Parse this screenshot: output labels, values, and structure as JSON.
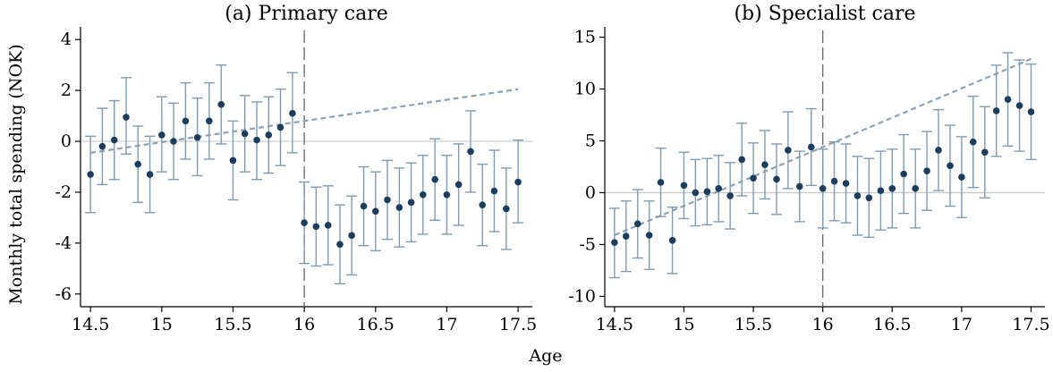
{
  "figure": {
    "ylabel": "Monthly total spending (NOK)",
    "xlabel": "Age"
  },
  "colors": {
    "point": "#1c3e5e",
    "errorbar": "#7f9bb2",
    "fitline": "#8aa2b8",
    "cutoff": "#666666",
    "zeroline": "#c8c8c8"
  },
  "chart_data": [
    {
      "type": "scatter",
      "title": "(a) Primary care",
      "xlim": [
        14.43,
        17.6
      ],
      "ylim": [
        -6.5,
        4.5
      ],
      "xticks": [
        14.5,
        15,
        15.5,
        16,
        16.5,
        17,
        17.5
      ],
      "xtick_labels": [
        "14.5",
        "15",
        "15.5",
        "16",
        "16.5",
        "17",
        "17.5"
      ],
      "yticks": [
        -6,
        -4,
        -2,
        0,
        2,
        4
      ],
      "ytick_labels": [
        "-6",
        "-4",
        "-2",
        "0",
        "2",
        "4"
      ],
      "cutoff": 16,
      "zero_line": true,
      "points": [
        {
          "x": 14.5,
          "y": -1.3,
          "lo": -2.8,
          "hi": 0.2
        },
        {
          "x": 14.583,
          "y": -0.2,
          "lo": -1.7,
          "hi": 1.3
        },
        {
          "x": 14.667,
          "y": 0.05,
          "lo": -1.5,
          "hi": 1.6
        },
        {
          "x": 14.75,
          "y": 0.95,
          "lo": -0.5,
          "hi": 2.5
        },
        {
          "x": 14.833,
          "y": -0.9,
          "lo": -2.4,
          "hi": 0.6
        },
        {
          "x": 14.917,
          "y": -1.3,
          "lo": -2.8,
          "hi": 0.2
        },
        {
          "x": 15.0,
          "y": 0.25,
          "lo": -1.2,
          "hi": 1.75
        },
        {
          "x": 15.083,
          "y": 0.0,
          "lo": -1.5,
          "hi": 1.5
        },
        {
          "x": 15.167,
          "y": 0.8,
          "lo": -0.7,
          "hi": 2.3
        },
        {
          "x": 15.25,
          "y": 0.15,
          "lo": -1.35,
          "hi": 1.7
        },
        {
          "x": 15.333,
          "y": 0.8,
          "lo": -0.7,
          "hi": 2.3
        },
        {
          "x": 15.417,
          "y": 1.45,
          "lo": -0.1,
          "hi": 3.0
        },
        {
          "x": 15.5,
          "y": -0.75,
          "lo": -2.3,
          "hi": 0.8
        },
        {
          "x": 15.583,
          "y": 0.3,
          "lo": -1.2,
          "hi": 1.8
        },
        {
          "x": 15.667,
          "y": 0.05,
          "lo": -1.5,
          "hi": 1.55
        },
        {
          "x": 15.75,
          "y": 0.25,
          "lo": -1.25,
          "hi": 1.75
        },
        {
          "x": 15.833,
          "y": 0.55,
          "lo": -0.95,
          "hi": 2.05
        },
        {
          "x": 15.917,
          "y": 1.1,
          "lo": -0.45,
          "hi": 2.7
        },
        {
          "x": 16.0,
          "y": -3.2,
          "lo": -4.8,
          "hi": -1.6
        },
        {
          "x": 16.083,
          "y": -3.35,
          "lo": -4.9,
          "hi": -1.8
        },
        {
          "x": 16.167,
          "y": -3.3,
          "lo": -4.85,
          "hi": -1.75
        },
        {
          "x": 16.25,
          "y": -4.05,
          "lo": -5.6,
          "hi": -2.5
        },
        {
          "x": 16.333,
          "y": -3.7,
          "lo": -5.25,
          "hi": -2.15
        },
        {
          "x": 16.417,
          "y": -2.55,
          "lo": -4.1,
          "hi": -1.0
        },
        {
          "x": 16.5,
          "y": -2.75,
          "lo": -4.3,
          "hi": -1.2
        },
        {
          "x": 16.583,
          "y": -2.3,
          "lo": -3.85,
          "hi": -0.75
        },
        {
          "x": 16.667,
          "y": -2.6,
          "lo": -4.15,
          "hi": -1.05
        },
        {
          "x": 16.75,
          "y": -2.4,
          "lo": -3.95,
          "hi": -0.85
        },
        {
          "x": 16.833,
          "y": -2.1,
          "lo": -3.65,
          "hi": -0.55
        },
        {
          "x": 16.917,
          "y": -1.5,
          "lo": -3.1,
          "hi": 0.1
        },
        {
          "x": 17.0,
          "y": -2.1,
          "lo": -3.65,
          "hi": -0.55
        },
        {
          "x": 17.083,
          "y": -1.7,
          "lo": -3.3,
          "hi": -0.1
        },
        {
          "x": 17.167,
          "y": -0.4,
          "lo": -2.0,
          "hi": 1.2
        },
        {
          "x": 17.25,
          "y": -2.5,
          "lo": -4.1,
          "hi": -0.9
        },
        {
          "x": 17.333,
          "y": -1.95,
          "lo": -3.55,
          "hi": -0.35
        },
        {
          "x": 17.417,
          "y": -2.65,
          "lo": -4.25,
          "hi": -1.05
        },
        {
          "x": 17.5,
          "y": -1.6,
          "lo": -3.2,
          "hi": 0.05
        }
      ],
      "fit_line": {
        "x": [
          14.5,
          17.5
        ],
        "y": [
          -0.45,
          2.05
        ]
      }
    },
    {
      "type": "scatter",
      "title": "(b) Specialist care",
      "xlim": [
        14.43,
        17.6
      ],
      "ylim": [
        -11,
        16
      ],
      "xticks": [
        14.5,
        15,
        15.5,
        16,
        16.5,
        17,
        17.5
      ],
      "xtick_labels": [
        "14.5",
        "15",
        "15.5",
        "16",
        "16.5",
        "17",
        "17.5"
      ],
      "yticks": [
        -10,
        -5,
        0,
        5,
        10,
        15
      ],
      "ytick_labels": [
        "-10",
        "-5",
        "0",
        "5",
        "10",
        "15"
      ],
      "cutoff": 16,
      "zero_line": true,
      "points": [
        {
          "x": 14.5,
          "y": -4.8,
          "lo": -8.2,
          "hi": -1.5
        },
        {
          "x": 14.583,
          "y": -4.2,
          "lo": -7.6,
          "hi": -0.8
        },
        {
          "x": 14.667,
          "y": -3.0,
          "lo": -6.3,
          "hi": 0.3
        },
        {
          "x": 14.75,
          "y": -4.1,
          "lo": -7.4,
          "hi": -0.8
        },
        {
          "x": 14.833,
          "y": 1.0,
          "lo": -2.3,
          "hi": 4.3
        },
        {
          "x": 14.917,
          "y": -4.6,
          "lo": -7.8,
          "hi": -1.4
        },
        {
          "x": 15.0,
          "y": 0.7,
          "lo": -2.5,
          "hi": 3.9
        },
        {
          "x": 15.083,
          "y": 0.0,
          "lo": -3.2,
          "hi": 3.2
        },
        {
          "x": 15.167,
          "y": 0.1,
          "lo": -3.1,
          "hi": 3.3
        },
        {
          "x": 15.25,
          "y": 0.4,
          "lo": -2.8,
          "hi": 3.6
        },
        {
          "x": 15.333,
          "y": -0.3,
          "lo": -3.5,
          "hi": 2.9
        },
        {
          "x": 15.417,
          "y": 3.2,
          "lo": -0.3,
          "hi": 6.7
        },
        {
          "x": 15.5,
          "y": 1.4,
          "lo": -2.0,
          "hi": 4.8
        },
        {
          "x": 15.583,
          "y": 2.7,
          "lo": -0.6,
          "hi": 6.0
        },
        {
          "x": 15.667,
          "y": 1.3,
          "lo": -2.1,
          "hi": 4.7
        },
        {
          "x": 15.75,
          "y": 4.1,
          "lo": 0.4,
          "hi": 7.8
        },
        {
          "x": 15.833,
          "y": 0.6,
          "lo": -2.8,
          "hi": 4.0
        },
        {
          "x": 15.917,
          "y": 4.4,
          "lo": 0.7,
          "hi": 8.1
        },
        {
          "x": 16.0,
          "y": 0.4,
          "lo": -3.4,
          "hi": 4.2
        },
        {
          "x": 16.083,
          "y": 1.1,
          "lo": -2.7,
          "hi": 4.9
        },
        {
          "x": 16.167,
          "y": 0.9,
          "lo": -2.9,
          "hi": 4.7
        },
        {
          "x": 16.25,
          "y": -0.3,
          "lo": -4.1,
          "hi": 3.5
        },
        {
          "x": 16.333,
          "y": -0.5,
          "lo": -4.3,
          "hi": 3.3
        },
        {
          "x": 16.417,
          "y": 0.2,
          "lo": -3.6,
          "hi": 4.0
        },
        {
          "x": 16.5,
          "y": 0.4,
          "lo": -3.4,
          "hi": 4.2
        },
        {
          "x": 16.583,
          "y": 1.8,
          "lo": -2.0,
          "hi": 5.6
        },
        {
          "x": 16.667,
          "y": 0.4,
          "lo": -3.4,
          "hi": 4.2
        },
        {
          "x": 16.75,
          "y": 2.1,
          "lo": -1.7,
          "hi": 5.9
        },
        {
          "x": 16.833,
          "y": 4.1,
          "lo": 0.2,
          "hi": 8.0
        },
        {
          "x": 16.917,
          "y": 2.6,
          "lo": -1.3,
          "hi": 6.5
        },
        {
          "x": 17.0,
          "y": 1.5,
          "lo": -2.4,
          "hi": 5.4
        },
        {
          "x": 17.083,
          "y": 4.9,
          "lo": 0.5,
          "hi": 9.3
        },
        {
          "x": 17.167,
          "y": 3.9,
          "lo": -0.5,
          "hi": 8.3
        },
        {
          "x": 17.25,
          "y": 7.9,
          "lo": 3.5,
          "hi": 12.3
        },
        {
          "x": 17.333,
          "y": 9.0,
          "lo": 4.5,
          "hi": 13.5
        },
        {
          "x": 17.417,
          "y": 8.4,
          "lo": 4.0,
          "hi": 12.8
        },
        {
          "x": 17.5,
          "y": 7.8,
          "lo": 3.2,
          "hi": 12.4
        }
      ],
      "fit_line": {
        "x": [
          14.5,
          17.5
        ],
        "y": [
          -4.1,
          12.9
        ]
      }
    }
  ]
}
